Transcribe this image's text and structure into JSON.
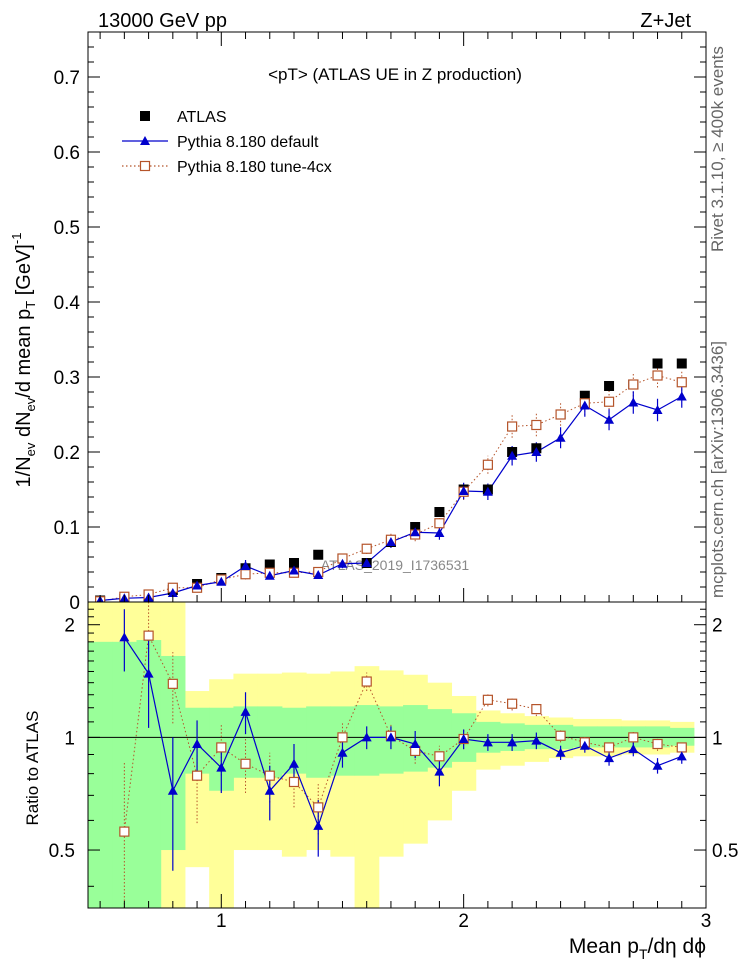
{
  "header": {
    "left": "13000 GeV pp",
    "right": "Z+Jet"
  },
  "side_labels": {
    "rivet": "Rivet 3.1.10, ≥ 400k events",
    "mcplots": "mcplots.cern.ch [arXiv:1306.3436]"
  },
  "chart_data": {
    "type": "scatter",
    "title": "<pT>  (ATLAS UE in Z production)",
    "watermark": "ATLAS_2019_I1736531",
    "colors": {
      "atlas": "#000000",
      "default": "#0000cc",
      "tune": "#b5542a",
      "band_inner": "#99ff99",
      "band_outer": "#ffff99"
    },
    "legend": {
      "placement": "top-left",
      "entries": [
        "ATLAS",
        "Pythia 8.180 default",
        "Pythia 8.180 tune-4cx"
      ]
    },
    "x": [
      0.5,
      0.6,
      0.7,
      0.8,
      0.9,
      1.0,
      1.1,
      1.2,
      1.3,
      1.4,
      1.5,
      1.6,
      1.7,
      1.8,
      1.9,
      2.0,
      2.1,
      2.2,
      2.3,
      2.4,
      2.5,
      2.6,
      2.7,
      2.8,
      2.9
    ],
    "xlabel": "Mean p_T/dη dϕ",
    "xlim": [
      0.45,
      3.0
    ],
    "x_ticks": [
      "1",
      "2",
      "3"
    ],
    "main": {
      "ylabel": "1/N_ev dN_ev/d mean p_T [GeV]^-1",
      "ylim": [
        0,
        0.76
      ],
      "y_ticks": [
        "0",
        "0.1",
        "0.2",
        "0.3",
        "0.4",
        "0.5",
        "0.6",
        "0.7"
      ],
      "series": [
        {
          "name": "ATLAS",
          "marker": "filled-square",
          "values": [
            0.002,
            0.004,
            0.007,
            0.016,
            0.024,
            0.032,
            0.045,
            0.05,
            0.052,
            0.063,
            0.058,
            0.052,
            0.08,
            0.1,
            0.12,
            0.15,
            0.15,
            0.2,
            0.205,
            0.25,
            0.275,
            0.288,
            0.29,
            0.318,
            0.318
          ]
        },
        {
          "name": "Pythia 8.180 default",
          "marker": "filled-triangle",
          "line": "solid",
          "values": [
            0.002,
            0.005,
            0.006,
            0.012,
            0.022,
            0.027,
            0.048,
            0.035,
            0.042,
            0.036,
            0.051,
            0.052,
            0.08,
            0.093,
            0.092,
            0.148,
            0.147,
            0.195,
            0.2,
            0.219,
            0.262,
            0.243,
            0.266,
            0.256,
            0.274
          ],
          "errors": [
            0.001,
            0.001,
            0.002,
            0.003,
            0.004,
            0.005,
            0.008,
            0.005,
            0.006,
            0.005,
            0.006,
            0.006,
            0.008,
            0.009,
            0.009,
            0.011,
            0.011,
            0.013,
            0.013,
            0.014,
            0.015,
            0.014,
            0.015,
            0.015,
            0.015
          ]
        },
        {
          "name": "Pythia 8.180 tune-4cx",
          "marker": "open-square",
          "line": "dotted",
          "values": [
            0.001,
            0.007,
            0.01,
            0.019,
            0.019,
            0.03,
            0.037,
            0.039,
            0.039,
            0.04,
            0.058,
            0.071,
            0.083,
            0.09,
            0.105,
            0.147,
            0.183,
            0.234,
            0.236,
            0.25,
            0.265,
            0.267,
            0.29,
            0.302,
            0.293
          ],
          "errors": [
            0.001,
            0.002,
            0.003,
            0.004,
            0.005,
            0.006,
            0.007,
            0.006,
            0.006,
            0.006,
            0.007,
            0.007,
            0.008,
            0.009,
            0.009,
            0.011,
            0.012,
            0.015,
            0.015,
            0.015,
            0.016,
            0.015,
            0.016,
            0.016,
            0.016
          ]
        }
      ]
    },
    "ratio": {
      "ylabel": "Ratio to ATLAS",
      "ylim": [
        0.35,
        2.3
      ],
      "y_ticks": [
        "0.5",
        "1",
        "2"
      ],
      "bands": {
        "inner": [
          [
            0.35,
            1.8
          ],
          [
            0.35,
            1.8
          ],
          [
            0.35,
            1.82
          ],
          [
            0.5,
            1.65
          ],
          [
            0.8,
            1.2
          ],
          [
            0.72,
            1.2
          ],
          [
            0.78,
            1.21
          ],
          [
            0.78,
            1.21
          ],
          [
            0.8,
            1.2
          ],
          [
            0.78,
            1.21
          ],
          [
            0.79,
            1.21
          ],
          [
            0.79,
            1.22
          ],
          [
            0.8,
            1.21
          ],
          [
            0.81,
            1.22
          ],
          [
            0.83,
            1.19
          ],
          [
            0.86,
            1.16
          ],
          [
            0.91,
            1.1
          ],
          [
            0.92,
            1.09
          ],
          [
            0.93,
            1.08
          ],
          [
            0.93,
            1.08
          ],
          [
            0.94,
            1.07
          ],
          [
            0.94,
            1.07
          ],
          [
            0.94,
            1.07
          ],
          [
            0.94,
            1.07
          ],
          [
            0.95,
            1.06
          ]
        ],
        "outer": [
          [
            0.35,
            2.3
          ],
          [
            0.35,
            2.3
          ],
          [
            0.35,
            2.3
          ],
          [
            0.35,
            2.3
          ],
          [
            0.45,
            1.33
          ],
          [
            0.35,
            1.43
          ],
          [
            0.5,
            1.48
          ],
          [
            0.5,
            1.48
          ],
          [
            0.48,
            1.49
          ],
          [
            0.5,
            1.48
          ],
          [
            0.48,
            1.5
          ],
          [
            0.35,
            1.55
          ],
          [
            0.48,
            1.51
          ],
          [
            0.52,
            1.47
          ],
          [
            0.6,
            1.4
          ],
          [
            0.72,
            1.29
          ],
          [
            0.82,
            1.18
          ],
          [
            0.84,
            1.16
          ],
          [
            0.86,
            1.14
          ],
          [
            0.88,
            1.13
          ],
          [
            0.89,
            1.12
          ],
          [
            0.89,
            1.12
          ],
          [
            0.9,
            1.11
          ],
          [
            0.9,
            1.11
          ],
          [
            0.91,
            1.1
          ]
        ]
      },
      "series": [
        {
          "name": "Pythia 8.180 default",
          "marker": "filled-triangle",
          "line": "solid",
          "x": [
            0.6,
            0.7,
            0.8,
            0.9,
            1.0,
            1.1,
            1.2,
            1.3,
            1.4,
            1.5,
            1.6,
            1.7,
            1.8,
            1.9,
            2.0,
            2.1,
            2.2,
            2.3,
            2.4,
            2.5,
            2.6,
            2.7,
            2.8,
            2.9
          ],
          "values": [
            1.85,
            1.48,
            0.72,
            0.96,
            0.83,
            1.17,
            0.72,
            0.85,
            0.58,
            0.91,
            1.0,
            1.0,
            0.96,
            0.81,
            0.99,
            0.97,
            0.97,
            0.98,
            0.91,
            0.95,
            0.88,
            0.93,
            0.84,
            0.89
          ],
          "errors": [
            0.35,
            0.42,
            0.28,
            0.15,
            0.12,
            0.15,
            0.12,
            0.11,
            0.1,
            0.08,
            0.07,
            0.07,
            0.08,
            0.07,
            0.06,
            0.05,
            0.05,
            0.05,
            0.04,
            0.04,
            0.04,
            0.04,
            0.04,
            0.04
          ]
        },
        {
          "name": "Pythia 8.180 tune-4cx",
          "marker": "open-square",
          "line": "dotted",
          "x": [
            0.6,
            0.7,
            0.8,
            0.9,
            1.0,
            1.1,
            1.2,
            1.3,
            1.4,
            1.5,
            1.6,
            1.7,
            1.8,
            1.9,
            2.0,
            2.1,
            2.2,
            2.3,
            2.4,
            2.5,
            2.6,
            2.7,
            2.8,
            2.9
          ],
          "values": [
            0.56,
            1.87,
            1.39,
            0.79,
            0.94,
            0.85,
            0.79,
            0.76,
            0.65,
            1.0,
            1.41,
            1.01,
            0.92,
            0.89,
            0.99,
            1.26,
            1.23,
            1.19,
            1.01,
            0.97,
            0.94,
            1.0,
            0.96,
            0.94
          ],
          "errors": [
            0.3,
            0.45,
            0.3,
            0.2,
            0.15,
            0.14,
            0.12,
            0.11,
            0.1,
            0.09,
            0.08,
            0.07,
            0.07,
            0.06,
            0.06,
            0.05,
            0.05,
            0.05,
            0.04,
            0.04,
            0.04,
            0.04,
            0.04,
            0.04
          ]
        }
      ]
    }
  }
}
